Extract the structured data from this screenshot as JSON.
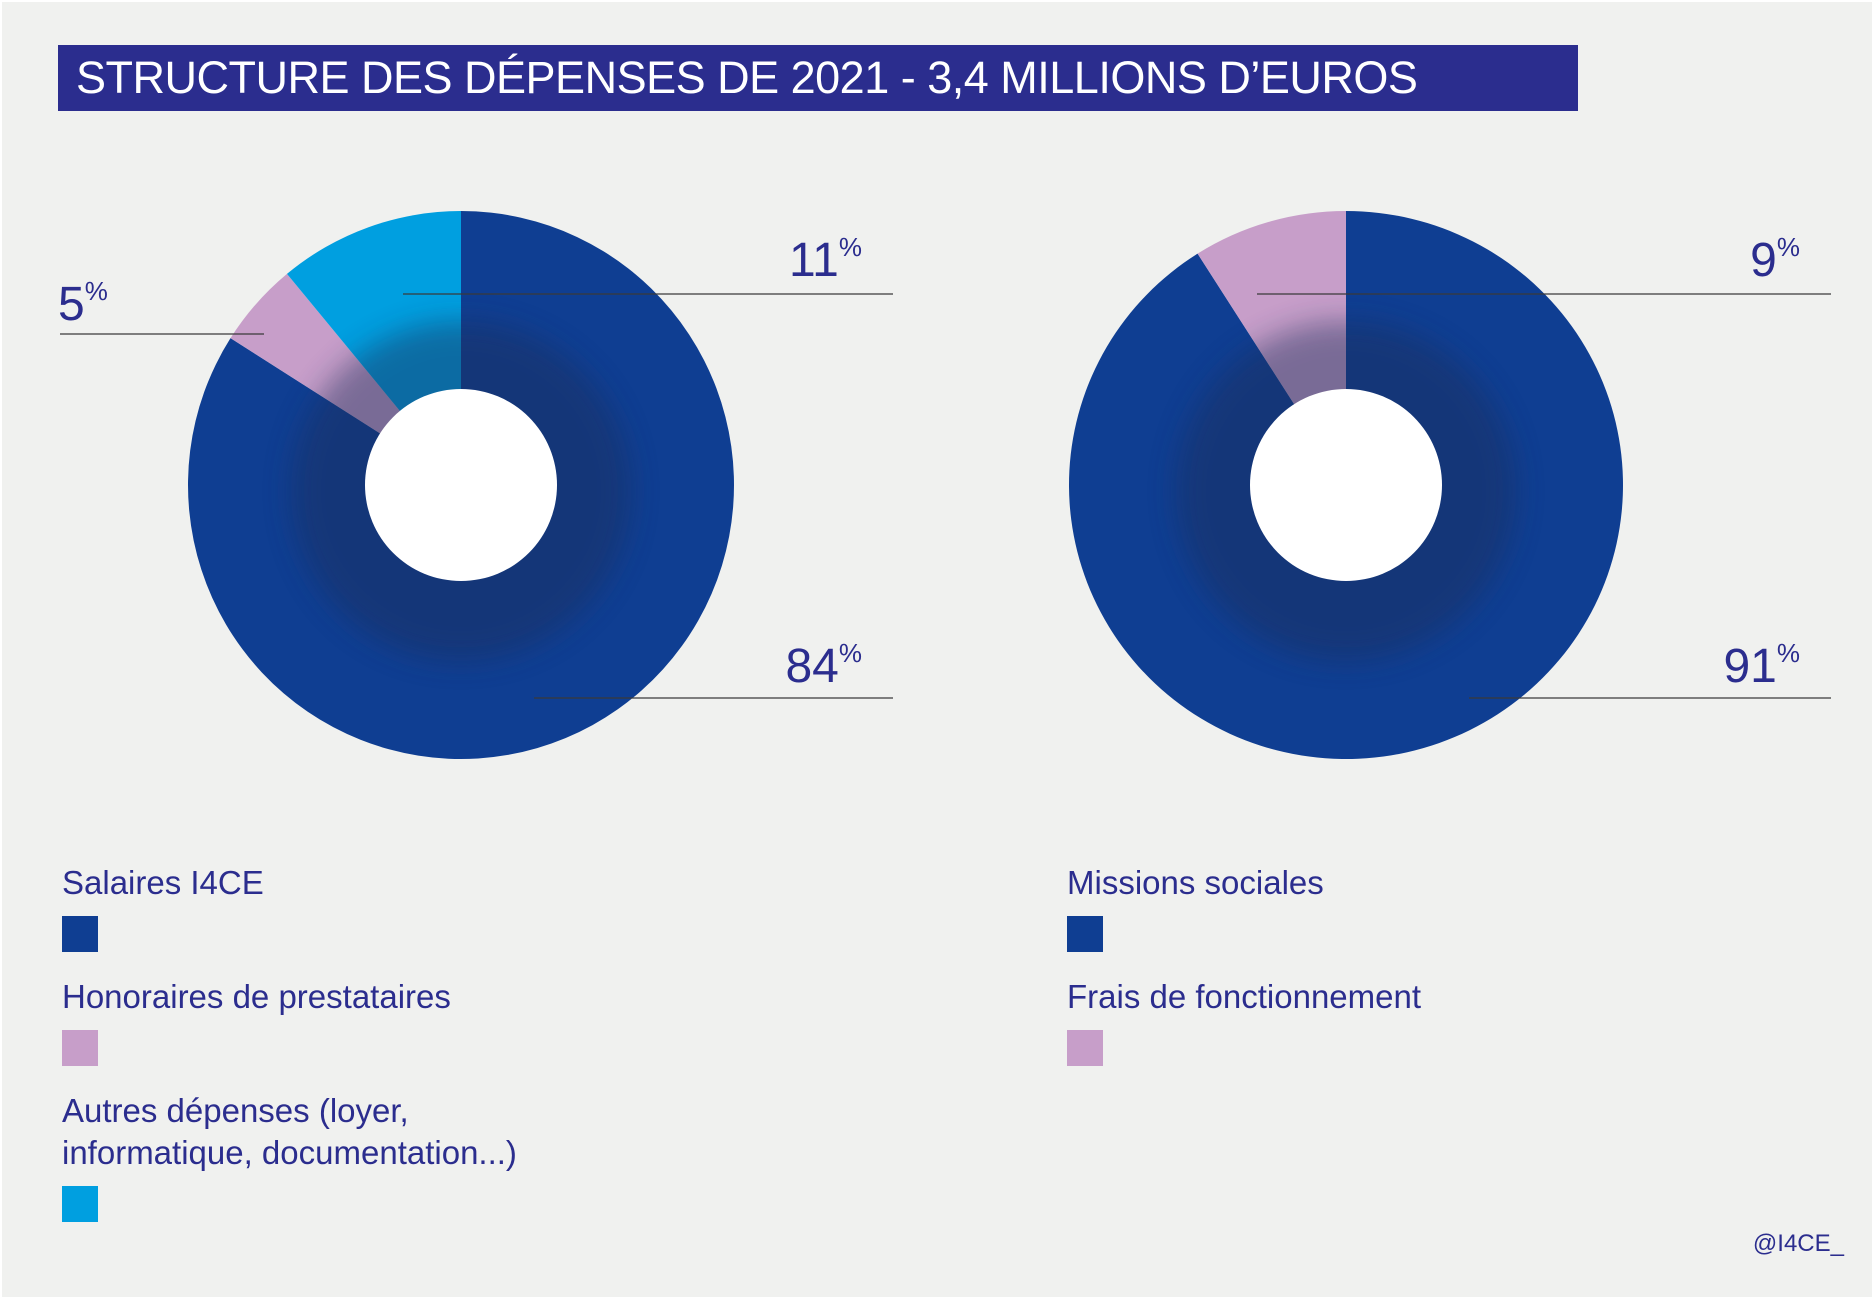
{
  "title": "STRUCTURE DES DÉPENSES DE 2021 - 3,4 MILLIONS D’EUROS",
  "credit": "@I4CE_",
  "colors": {
    "dark_blue": "#0f3e92",
    "pink": "#c79ec9",
    "cyan": "#009fe0",
    "title_bg": "#2b2d8e",
    "text": "#2b2d8e"
  },
  "chart_data": [
    {
      "type": "pie",
      "title": "",
      "slices": [
        {
          "label": "Salaires I4CE",
          "value": 84,
          "display": "84",
          "color": "#0f3e92"
        },
        {
          "label": "Honoraires de prestataires",
          "value": 5,
          "display": "5",
          "color": "#c79ec9"
        },
        {
          "label": "Autres dépenses (loyer, informatique, documentation...)",
          "value": 11,
          "display": "11",
          "color": "#009fe0"
        }
      ],
      "unit": "%",
      "legend_position": "bottom-left"
    },
    {
      "type": "pie",
      "title": "",
      "slices": [
        {
          "label": "Missions sociales",
          "value": 91,
          "display": "91",
          "color": "#0f3e92"
        },
        {
          "label": "Frais de fonctionnement",
          "value": 9,
          "display": "9",
          "color": "#c79ec9"
        }
      ],
      "unit": "%",
      "legend_position": "bottom-right"
    }
  ],
  "legend_left": [
    {
      "label": "Salaires I4CE",
      "color": "#0f3e92"
    },
    {
      "label": "Honoraires de prestataires",
      "color": "#c79ec9"
    },
    {
      "label": "Autres dépenses (loyer,\ninformatique, documentation...)",
      "color": "#009fe0"
    }
  ],
  "legend_right": [
    {
      "label": "Missions sociales",
      "color": "#0f3e92"
    },
    {
      "label": "Frais de fonctionnement",
      "color": "#c79ec9"
    }
  ]
}
